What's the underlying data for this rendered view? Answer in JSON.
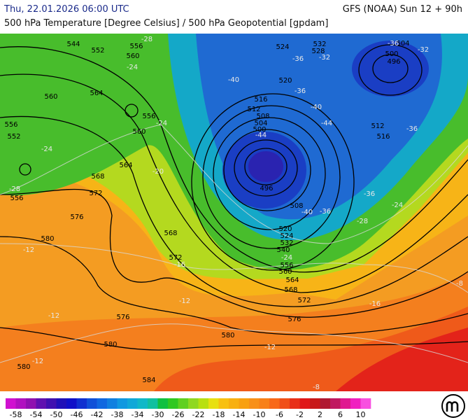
{
  "header": {
    "left": "Thu, 22.01.2026 06:00 UTC",
    "right": "GFS (NOAA) Sun 12 + 90h",
    "subtitle": "500 hPa Temperature [Degree Celsius] / 500 hPa Geopotential [gpdam]"
  },
  "map": {
    "geopotential_labels": [
      544,
      552,
      556,
      560,
      560,
      564,
      556,
      552,
      556,
      560,
      564,
      568,
      572,
      576,
      580,
      568,
      572,
      576,
      580,
      580,
      584,
      580,
      576,
      572,
      568,
      564,
      560,
      556,
      540,
      532,
      524,
      520,
      508,
      496,
      500,
      504,
      508,
      512,
      516,
      520,
      524,
      528,
      532,
      500,
      496,
      504,
      512,
      516,
      556
    ],
    "temperature_labels": [
      -28,
      -24,
      -24,
      -24,
      -28,
      -20,
      -12,
      -16,
      -12,
      -12,
      -12,
      -12,
      -8,
      -8,
      -36,
      -32,
      -40,
      -36,
      -40,
      -44,
      -44,
      -36,
      -36,
      -40,
      -36,
      -28,
      -24,
      -36,
      -32,
      -24,
      -16
    ]
  },
  "colorbar": {
    "labels": [
      -58,
      -54,
      -50,
      -46,
      -42,
      -38,
      -34,
      -30,
      -26,
      -22,
      -18,
      -14,
      -10,
      -6,
      -2,
      2,
      6,
      10
    ]
  }
}
